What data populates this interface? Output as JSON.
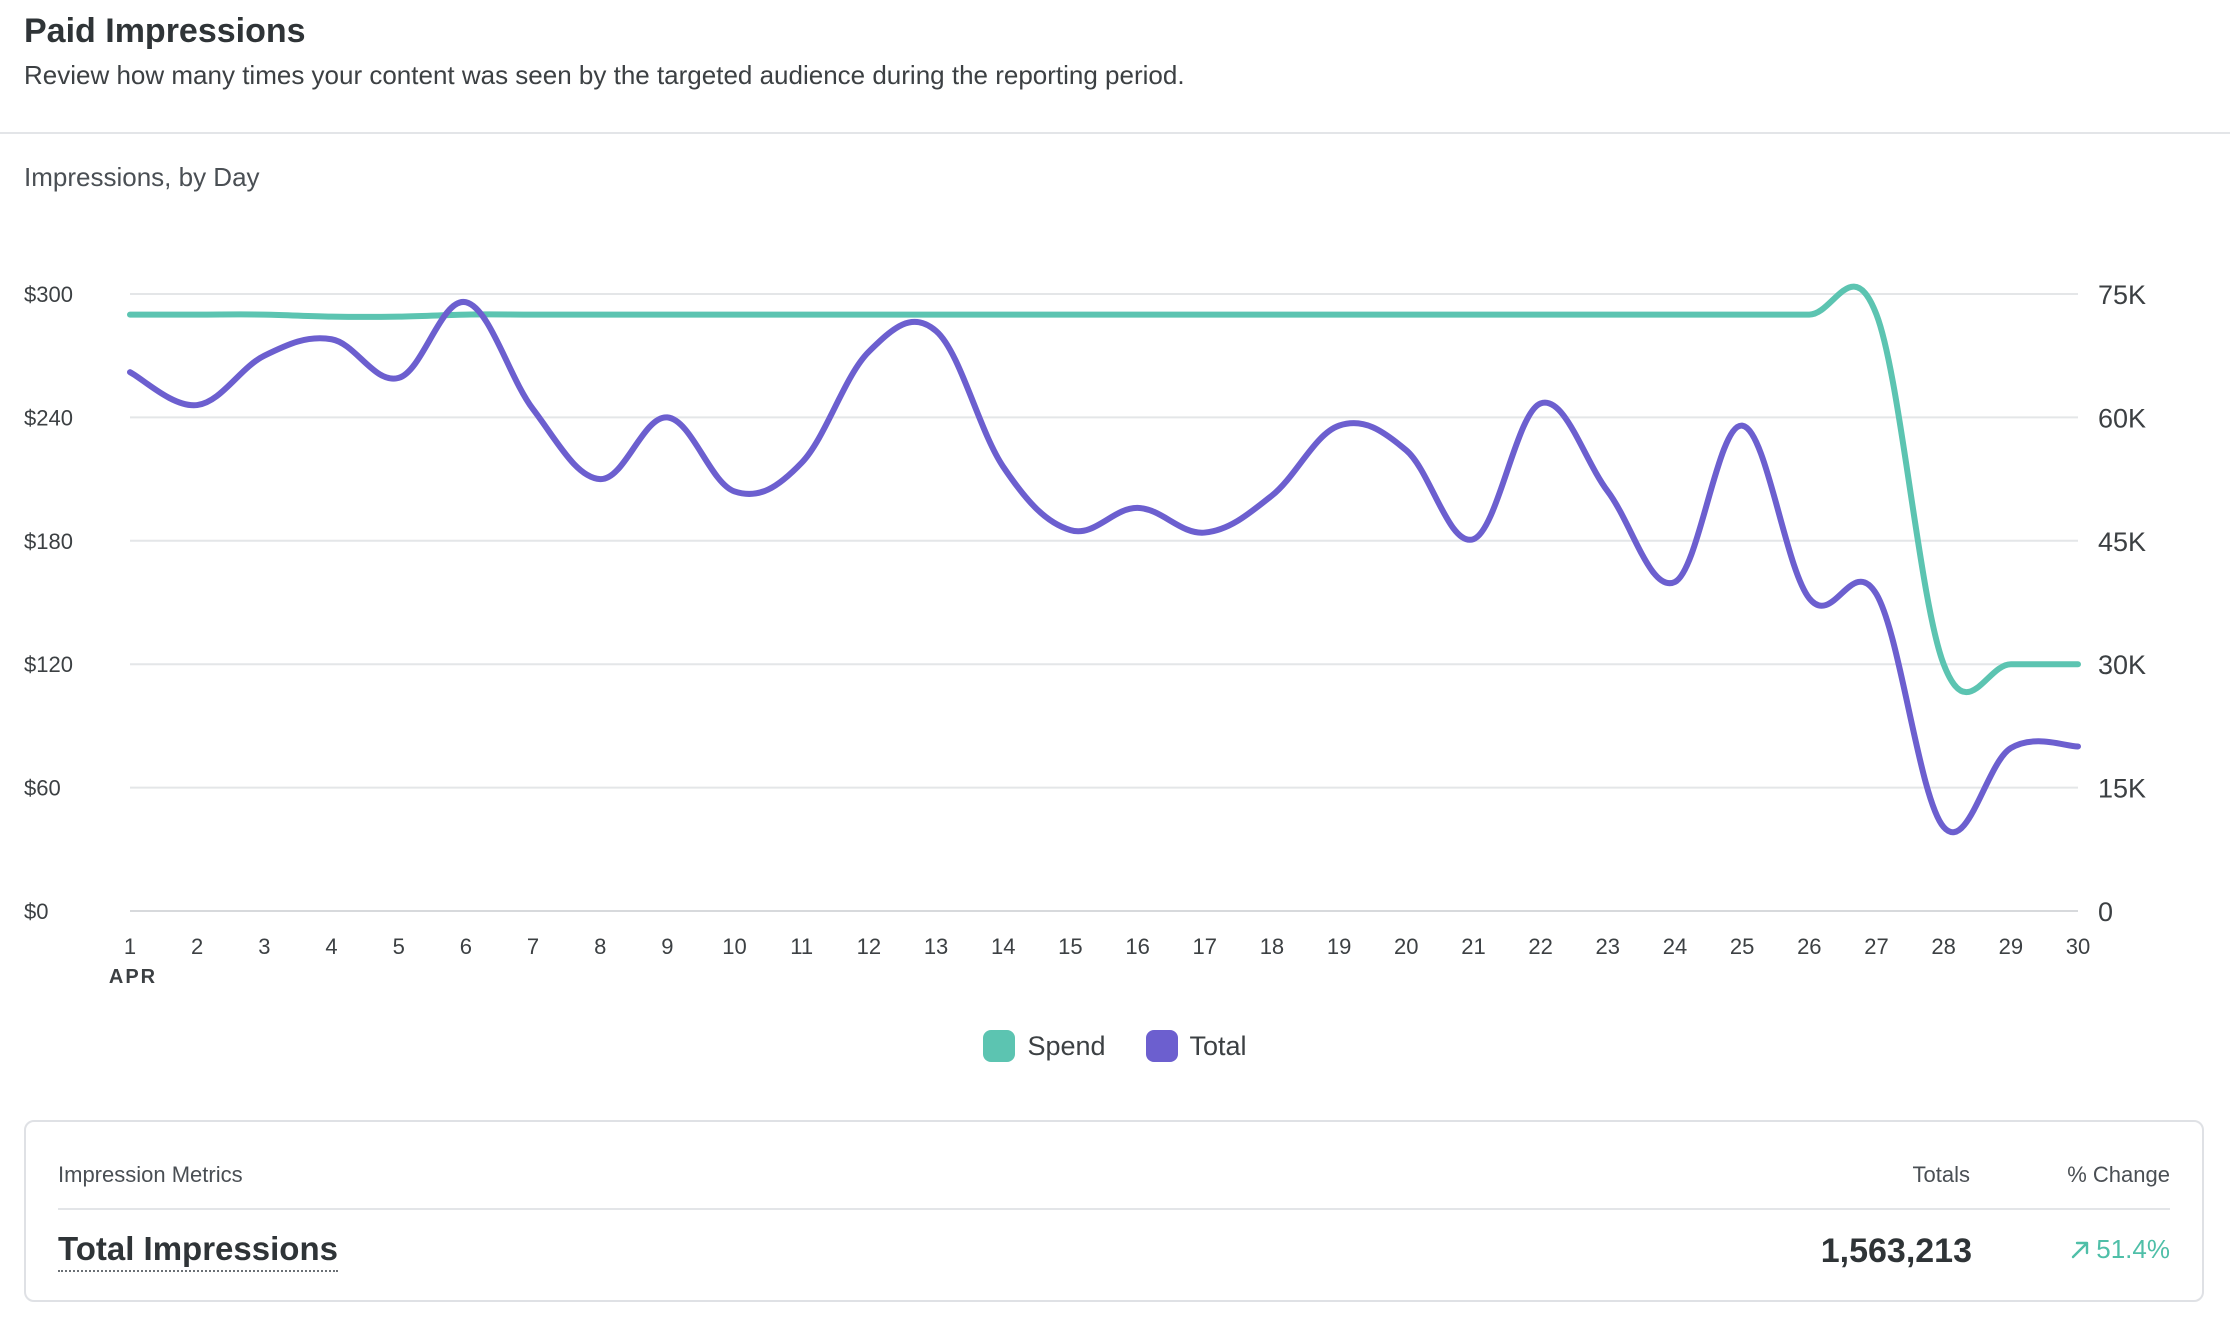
{
  "header": {
    "title": "Paid Impressions",
    "subtitle": "Review how many times your content was seen by the targeted audience during the reporting period."
  },
  "chart_title": "Impressions, by Day",
  "chart_data": {
    "type": "line",
    "title": "Impressions, by Day",
    "x": [
      1,
      2,
      3,
      4,
      5,
      6,
      7,
      8,
      9,
      10,
      11,
      12,
      13,
      14,
      15,
      16,
      17,
      18,
      19,
      20,
      21,
      22,
      23,
      24,
      25,
      26,
      27,
      28,
      29,
      30
    ],
    "x_month_label": "APR",
    "left_axis": {
      "ticks": [
        "$0",
        "$60",
        "$120",
        "$180",
        "$240",
        "$300"
      ],
      "range": [
        0,
        300
      ]
    },
    "right_axis": {
      "ticks": [
        "0",
        "15K",
        "30K",
        "45K",
        "60K",
        "75K"
      ],
      "range": [
        0,
        75000
      ]
    },
    "grid": true,
    "legend_placement": "bottom-center",
    "series": [
      {
        "name": "Spend",
        "axis": "left",
        "color": "#5cc4b1",
        "values": [
          290,
          290,
          290,
          289,
          289,
          290,
          290,
          290,
          290,
          290,
          290,
          290,
          290,
          290,
          290,
          290,
          290,
          290,
          290,
          290,
          290,
          290,
          290,
          290,
          290,
          290,
          290,
          120,
          120,
          120
        ]
      },
      {
        "name": "Total",
        "axis": "right",
        "color": "#6c5fcf",
        "values": [
          65500,
          61500,
          67500,
          69500,
          64800,
          74000,
          61000,
          52500,
          60000,
          51000,
          54500,
          68000,
          70500,
          54000,
          46300,
          49000,
          46000,
          50500,
          59000,
          56000,
          45200,
          61700,
          51000,
          40000,
          59000,
          38000,
          38500,
          10200,
          19800,
          20000
        ]
      }
    ]
  },
  "legend": [
    {
      "label": "Spend",
      "color": "#5cc4b1"
    },
    {
      "label": "Total",
      "color": "#6c5fcf"
    }
  ],
  "metrics": {
    "header_label": "Impression Metrics",
    "header_totals": "Totals",
    "header_change": "% Change",
    "row_label": "Total Impressions",
    "row_total": "1,563,213",
    "row_change": "51.4%",
    "row_change_icon": "arrow-up-right-icon",
    "change_color": "#4fbfa8"
  }
}
